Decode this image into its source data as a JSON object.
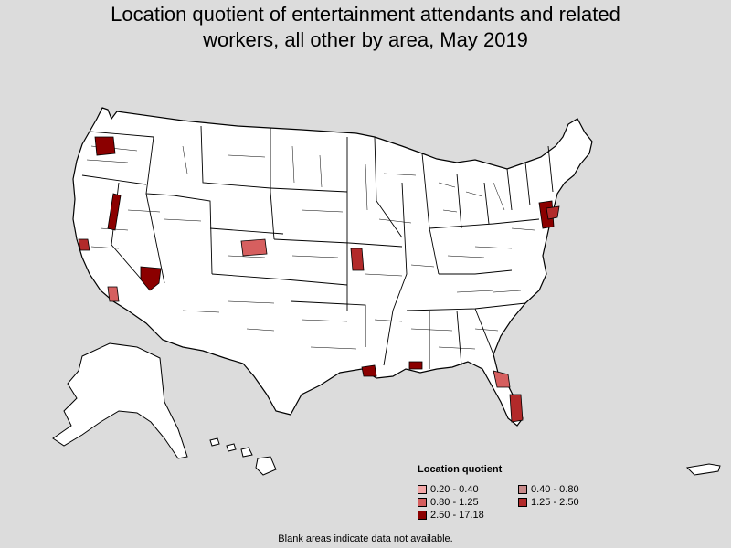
{
  "title_line1": "Location quotient of entertainment attendants and related",
  "title_line2": "workers, all other by area, May 2019",
  "legend": {
    "title": "Location quotient",
    "items": [
      {
        "label": "0.20 - 0.40",
        "color": "#f4a9a9"
      },
      {
        "label": "0.40 - 0.80",
        "color": "#c98b8b"
      },
      {
        "label": "0.80 - 1.25",
        "color": "#d65f5f"
      },
      {
        "label": "1.25 - 2.50",
        "color": "#b22a2a"
      },
      {
        "label": "2.50 - 17.18",
        "color": "#8b0000"
      }
    ]
  },
  "note": "Blank areas indicate data not available.",
  "colors": {
    "background": "#dcdcdc",
    "land": "#ffffff",
    "border": "#000000"
  }
}
